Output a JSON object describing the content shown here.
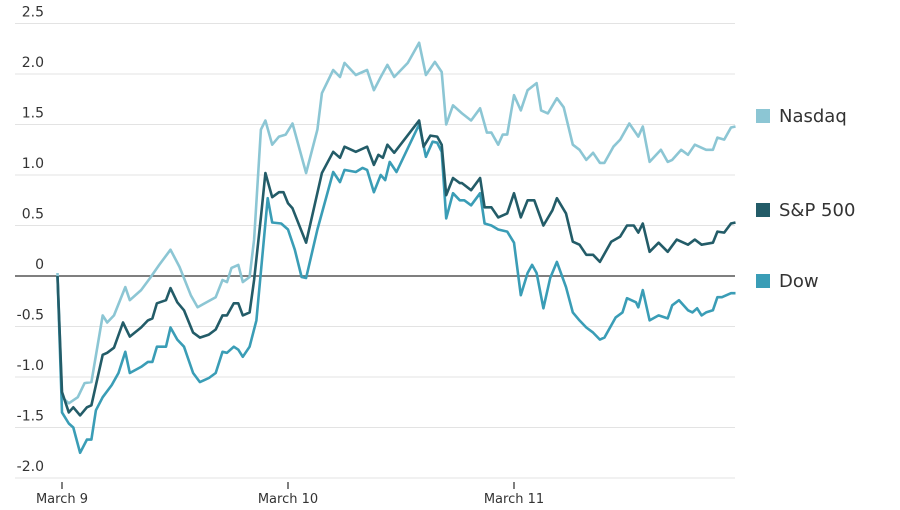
{
  "chart_data": {
    "type": "line",
    "title": "",
    "xlabel": "",
    "ylabel": "",
    "ylim": [
      -2.0,
      2.5
    ],
    "yticks": [
      2.5,
      2.0,
      1.5,
      1.0,
      0.5,
      0,
      -0.5,
      -1.0,
      -1.5,
      -2.0
    ],
    "ytick_labels": [
      "2.5",
      "2.0",
      "1.5",
      "1.0",
      "0.5",
      "0",
      "-0.5",
      "-1.0",
      "-1.5",
      "-2.0"
    ],
    "x_unit": "day of March",
    "xlim": [
      8.98,
      11.98
    ],
    "xticks": [
      9,
      10,
      11
    ],
    "xtick_labels": [
      "March 9",
      "March 10",
      "March 11"
    ],
    "grid": "horizontal",
    "legend_placement": "right",
    "series": [
      {
        "name": "Nasdaq",
        "color": "#8cc6d4",
        "x": [
          8.98,
          9.0,
          9.03,
          9.07,
          9.1,
          9.13,
          9.18,
          9.2,
          9.23,
          9.28,
          9.3,
          9.35,
          9.39,
          9.43,
          9.48,
          9.52,
          9.57,
          9.6,
          9.64,
          9.68,
          9.71,
          9.73,
          9.75,
          9.78,
          9.8,
          9.83,
          9.85,
          9.88,
          9.9,
          9.93,
          9.96,
          9.99,
          10.02,
          10.08,
          10.13,
          10.15,
          10.2,
          10.23,
          10.25,
          10.3,
          10.35,
          10.38,
          10.41,
          10.44,
          10.47,
          10.53,
          10.58,
          10.61,
          10.65,
          10.68,
          10.7,
          10.73,
          10.77,
          10.81,
          10.85,
          10.88,
          10.9,
          10.93,
          10.95,
          10.97,
          11.0,
          11.03,
          11.06,
          11.1,
          11.12,
          11.15,
          11.19,
          11.22,
          11.26,
          11.29,
          11.32,
          11.35,
          11.38,
          11.4,
          11.44,
          11.47,
          11.51,
          11.55,
          11.57,
          11.6,
          11.65,
          11.68,
          11.7,
          11.74,
          11.77,
          11.8,
          11.85,
          11.88,
          11.9,
          11.93,
          11.96,
          11.98
        ],
        "y": [
          0.03,
          -1.2,
          -1.26,
          -1.2,
          -1.06,
          -1.05,
          -0.39,
          -0.46,
          -0.39,
          -0.11,
          -0.24,
          -0.14,
          -0.02,
          0.11,
          0.26,
          0.09,
          -0.19,
          -0.31,
          -0.26,
          -0.21,
          -0.04,
          -0.06,
          0.08,
          0.11,
          -0.06,
          -0.01,
          0.36,
          1.45,
          1.54,
          1.3,
          1.38,
          1.4,
          1.51,
          1.02,
          1.45,
          1.81,
          2.04,
          1.97,
          2.11,
          1.99,
          2.04,
          1.84,
          1.97,
          2.09,
          1.97,
          2.11,
          2.31,
          1.99,
          2.12,
          2.02,
          1.5,
          1.69,
          1.61,
          1.54,
          1.66,
          1.42,
          1.42,
          1.3,
          1.4,
          1.4,
          1.79,
          1.64,
          1.84,
          1.91,
          1.64,
          1.61,
          1.76,
          1.67,
          1.3,
          1.25,
          1.15,
          1.22,
          1.12,
          1.12,
          1.28,
          1.35,
          1.51,
          1.38,
          1.48,
          1.13,
          1.25,
          1.13,
          1.15,
          1.25,
          1.2,
          1.3,
          1.25,
          1.25,
          1.37,
          1.35,
          1.47,
          1.48
        ]
      },
      {
        "name": "S&P 500",
        "color": "#235c68",
        "x": [
          8.98,
          9.0,
          9.03,
          9.05,
          9.08,
          9.11,
          9.13,
          9.18,
          9.2,
          9.23,
          9.27,
          9.3,
          9.35,
          9.38,
          9.4,
          9.42,
          9.46,
          9.48,
          9.51,
          9.54,
          9.58,
          9.61,
          9.65,
          9.68,
          9.71,
          9.73,
          9.76,
          9.78,
          9.8,
          9.83,
          9.85,
          9.88,
          9.9,
          9.93,
          9.96,
          9.98,
          10.0,
          10.02,
          10.08,
          10.15,
          10.2,
          10.23,
          10.25,
          10.3,
          10.35,
          10.38,
          10.4,
          10.42,
          10.44,
          10.47,
          10.58,
          10.6,
          10.63,
          10.66,
          10.68,
          10.7,
          10.73,
          10.76,
          10.77,
          10.81,
          10.85,
          10.87,
          10.9,
          10.93,
          10.97,
          11.0,
          11.03,
          11.06,
          11.09,
          11.13,
          11.17,
          11.19,
          11.23,
          11.26,
          11.29,
          11.32,
          11.35,
          11.38,
          11.43,
          11.47,
          11.5,
          11.53,
          11.55,
          11.57,
          11.6,
          11.64,
          11.68,
          11.72,
          11.77,
          11.8,
          11.83,
          11.88,
          11.9,
          11.93,
          11.96,
          11.98
        ],
        "y": [
          0,
          -1.15,
          -1.35,
          -1.3,
          -1.38,
          -1.3,
          -1.28,
          -0.78,
          -0.76,
          -0.71,
          -0.46,
          -0.6,
          -0.51,
          -0.44,
          -0.42,
          -0.27,
          -0.24,
          -0.12,
          -0.26,
          -0.34,
          -0.56,
          -0.61,
          -0.58,
          -0.53,
          -0.39,
          -0.39,
          -0.27,
          -0.27,
          -0.39,
          -0.36,
          -0.04,
          0.58,
          1.02,
          0.78,
          0.83,
          0.83,
          0.72,
          0.67,
          0.33,
          1.02,
          1.23,
          1.17,
          1.28,
          1.23,
          1.28,
          1.1,
          1.2,
          1.17,
          1.3,
          1.22,
          1.54,
          1.28,
          1.39,
          1.38,
          1.3,
          0.8,
          0.97,
          0.92,
          0.92,
          0.85,
          0.97,
          0.68,
          0.68,
          0.58,
          0.62,
          0.82,
          0.58,
          0.75,
          0.75,
          0.5,
          0.65,
          0.77,
          0.62,
          0.34,
          0.31,
          0.21,
          0.21,
          0.14,
          0.34,
          0.39,
          0.5,
          0.5,
          0.43,
          0.52,
          0.24,
          0.33,
          0.24,
          0.36,
          0.31,
          0.36,
          0.31,
          0.33,
          0.44,
          0.43,
          0.52,
          0.53
        ]
      },
      {
        "name": "Dow",
        "color": "#3a9db6",
        "x": [
          8.98,
          9.0,
          9.03,
          9.05,
          9.08,
          9.11,
          9.13,
          9.15,
          9.18,
          9.22,
          9.25,
          9.28,
          9.3,
          9.35,
          9.38,
          9.4,
          9.42,
          9.46,
          9.48,
          9.51,
          9.54,
          9.58,
          9.61,
          9.65,
          9.68,
          9.71,
          9.73,
          9.76,
          9.78,
          9.8,
          9.83,
          9.86,
          9.91,
          9.93,
          9.97,
          10.0,
          10.03,
          10.06,
          10.08,
          10.13,
          10.2,
          10.23,
          10.25,
          10.3,
          10.33,
          10.35,
          10.38,
          10.41,
          10.43,
          10.45,
          10.48,
          10.58,
          10.61,
          10.64,
          10.66,
          10.68,
          10.7,
          10.73,
          10.76,
          10.78,
          10.81,
          10.85,
          10.87,
          10.9,
          10.93,
          10.97,
          11.0,
          11.03,
          11.06,
          11.08,
          11.1,
          11.13,
          11.16,
          11.19,
          11.23,
          11.26,
          11.29,
          11.32,
          11.35,
          11.38,
          11.4,
          11.45,
          11.48,
          11.5,
          11.54,
          11.55,
          11.57,
          11.6,
          11.64,
          11.68,
          11.7,
          11.73,
          11.77,
          11.79,
          11.81,
          11.83,
          11.85,
          11.88,
          11.9,
          11.92,
          11.96,
          11.98
        ],
        "y": [
          0,
          -1.35,
          -1.46,
          -1.5,
          -1.75,
          -1.62,
          -1.62,
          -1.33,
          -1.2,
          -1.08,
          -0.96,
          -0.75,
          -0.96,
          -0.9,
          -0.85,
          -0.85,
          -0.7,
          -0.7,
          -0.51,
          -0.63,
          -0.7,
          -0.96,
          -1.05,
          -1.01,
          -0.96,
          -0.75,
          -0.76,
          -0.7,
          -0.73,
          -0.8,
          -0.7,
          -0.44,
          0.77,
          0.53,
          0.52,
          0.46,
          0.26,
          -0.01,
          -0.02,
          0.46,
          1.03,
          0.93,
          1.05,
          1.03,
          1.07,
          1.05,
          0.83,
          1.0,
          0.95,
          1.13,
          1.03,
          1.5,
          1.18,
          1.33,
          1.32,
          1.23,
          0.57,
          0.82,
          0.75,
          0.75,
          0.7,
          0.82,
          0.52,
          0.5,
          0.46,
          0.44,
          0.33,
          -0.19,
          0.03,
          0.11,
          0.03,
          -0.32,
          -0.02,
          0.14,
          -0.11,
          -0.36,
          -0.44,
          -0.51,
          -0.56,
          -0.63,
          -0.61,
          -0.41,
          -0.36,
          -0.22,
          -0.26,
          -0.31,
          -0.14,
          -0.44,
          -0.39,
          -0.42,
          -0.29,
          -0.24,
          -0.34,
          -0.36,
          -0.32,
          -0.39,
          -0.36,
          -0.34,
          -0.21,
          -0.21,
          -0.17,
          -0.17
        ]
      }
    ]
  }
}
